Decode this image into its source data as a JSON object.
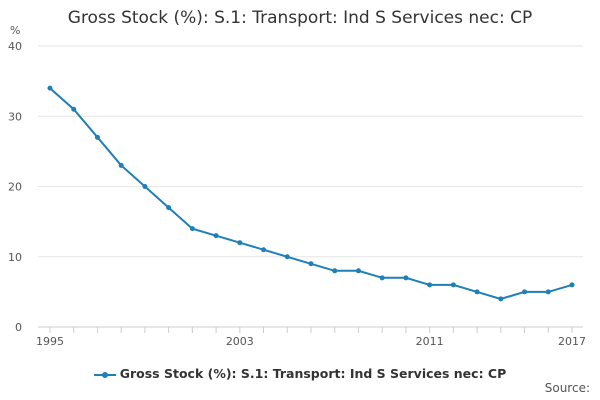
{
  "chart_data": {
    "type": "line",
    "title": "Gross Stock (%): S.1: Transport: Ind S Services nec: CP",
    "ylabel": "%",
    "xlabel": "",
    "ylim": [
      0,
      40
    ],
    "yticks": [
      0,
      10,
      20,
      30,
      40
    ],
    "xlim": [
      1995,
      2017
    ],
    "xticks": [
      1995,
      2003,
      2011,
      2017
    ],
    "series": [
      {
        "name": "Gross Stock (%): S.1: Transport: Ind S Services nec: CP",
        "color": "#1f7fb7",
        "x": [
          1995,
          1996,
          1997,
          1998,
          1999,
          2000,
          2001,
          2002,
          2003,
          2004,
          2005,
          2006,
          2007,
          2008,
          2009,
          2010,
          2011,
          2012,
          2013,
          2014,
          2015,
          2016,
          2017
        ],
        "values": [
          34,
          31,
          27,
          23,
          20,
          17,
          14,
          13,
          12,
          11,
          10,
          9,
          8,
          8,
          7,
          7,
          6,
          6,
          5,
          4,
          5,
          5,
          6
        ]
      }
    ],
    "legend_position": "bottom",
    "grid": true
  },
  "source_label": "Source:"
}
